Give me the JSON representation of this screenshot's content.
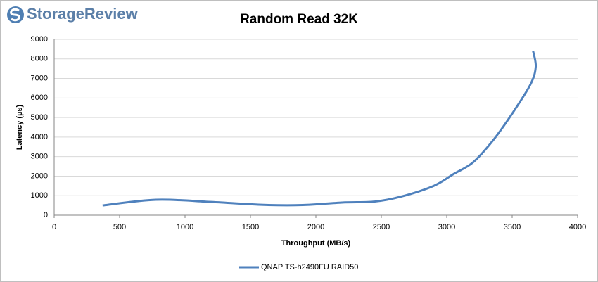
{
  "logo": "StorageReview",
  "chart_data": {
    "type": "line",
    "title": "Random Read 32K",
    "x_label": "Throughput (MB/s)",
    "y_label": "Latency (µs)",
    "xlim": [
      0,
      4000
    ],
    "xticks": [
      0,
      500,
      1000,
      1500,
      2000,
      2500,
      3000,
      3500,
      4000
    ],
    "ylim": [
      0,
      9000
    ],
    "yticks": [
      0,
      1000,
      2000,
      3000,
      4000,
      5000,
      6000,
      7000,
      8000,
      9000
    ],
    "grid": true,
    "legend": "bottom",
    "series": [
      {
        "name": "QNAP TS-h2490FU RAID50",
        "color": "#4f81bd",
        "x": [
          370,
          780,
          1200,
          1600,
          1900,
          2200,
          2450,
          2650,
          2900,
          3050,
          3200,
          3350,
          3500,
          3640,
          3680,
          3660
        ],
        "values": [
          500,
          790,
          680,
          530,
          520,
          650,
          700,
          950,
          1500,
          2100,
          2700,
          3800,
          5200,
          6700,
          7600,
          8400
        ]
      }
    ]
  }
}
